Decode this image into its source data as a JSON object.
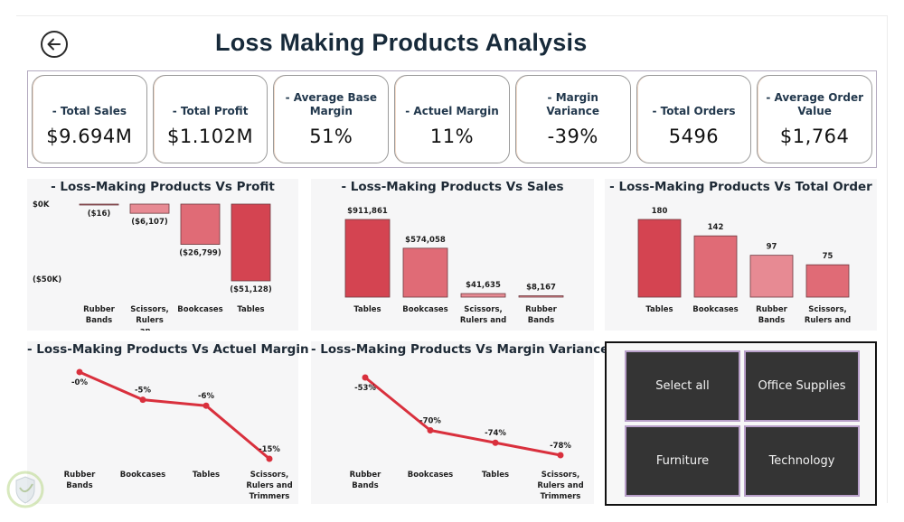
{
  "header": {
    "title": "Loss Making Products Analysis",
    "back_icon": "back-arrow-circle-icon"
  },
  "kpis": [
    {
      "label": "- Total Sales",
      "value": "$9.694M"
    },
    {
      "label": "- Total Profit",
      "value": "$1.102M"
    },
    {
      "label": "- Average Base Margin",
      "value": "51%"
    },
    {
      "label": "- Actuel Margin",
      "value": "11%"
    },
    {
      "label": "- Margin Variance",
      "value": "-39%"
    },
    {
      "label": "- Total Orders",
      "value": "5496"
    },
    {
      "label": "- Average Order Value",
      "value": "$1,764"
    }
  ],
  "colors": {
    "bar_dark": "#d44451",
    "bar_mid": "#e06b76",
    "bar_light": "#e78a93",
    "line": "#d9303d",
    "slicer_bg": "#343434",
    "slicer_border": "#b89fc9"
  },
  "chart_data": [
    {
      "id": "profit",
      "type": "bar",
      "title": "- Loss-Making Products Vs Profit",
      "categories": [
        "Rubber Bands",
        "Scissors, Rulers an...",
        "Bookcases",
        "Tables"
      ],
      "values": [
        -16,
        -6107,
        -26799,
        -51128
      ],
      "data_labels": [
        "($16)",
        "($6,107)",
        "($26,799)",
        "($51,128)"
      ],
      "yticks": [
        {
          "value": 0,
          "label": "$0K"
        },
        {
          "value": -50000,
          "label": "($50K)"
        }
      ],
      "ylim": [
        -51128,
        0
      ],
      "xlabel": "",
      "ylabel": ""
    },
    {
      "id": "sales",
      "type": "bar",
      "title": "- Loss-Making Products Vs Sales",
      "categories": [
        "Tables",
        "Bookcases",
        "Scissors, Rulers and ...",
        "Rubber Bands"
      ],
      "values": [
        911861,
        574058,
        41635,
        8167
      ],
      "data_labels": [
        "$911,861",
        "$574,058",
        "$41,635",
        "$8,167"
      ],
      "ylim": [
        0,
        911861
      ],
      "xlabel": "",
      "ylabel": ""
    },
    {
      "id": "orders",
      "type": "bar",
      "title": "- Loss-Making Products Vs Total Order",
      "categories": [
        "Tables",
        "Bookcases",
        "Rubber Bands",
        "Scissors, Rulers and ..."
      ],
      "values": [
        180,
        142,
        97,
        75
      ],
      "data_labels": [
        "180",
        "142",
        "97",
        "75"
      ],
      "ylim": [
        0,
        180
      ],
      "xlabel": "",
      "ylabel": ""
    },
    {
      "id": "actual_margin",
      "type": "line",
      "title": "- Loss-Making Products Vs Actuel Margin",
      "categories": [
        "Rubber Bands",
        "Bookcases",
        "Tables",
        "Scissors, Rulers and Trimmers"
      ],
      "values": [
        -0.3,
        -5,
        -6,
        -15
      ],
      "data_labels": [
        "-0%",
        "-5%",
        "-6%",
        "-15%"
      ],
      "ylim": [
        -15,
        0
      ],
      "xlabel": "",
      "ylabel": ""
    },
    {
      "id": "margin_variance",
      "type": "line",
      "title": "- Loss-Making Products Vs Margin Variance",
      "categories": [
        "Rubber Bands",
        "Bookcases",
        "Tables",
        "Scissors, Rulers and Trimmers"
      ],
      "values": [
        -53,
        -70,
        -74,
        -78
      ],
      "data_labels": [
        "-53%",
        "-70%",
        "-74%",
        "-78%"
      ],
      "ylim": [
        -78,
        -53
      ],
      "xlabel": "",
      "ylabel": ""
    }
  ],
  "slicer": {
    "options": [
      "Select all",
      "Office Supplies",
      "Furniture",
      "Technology"
    ]
  }
}
